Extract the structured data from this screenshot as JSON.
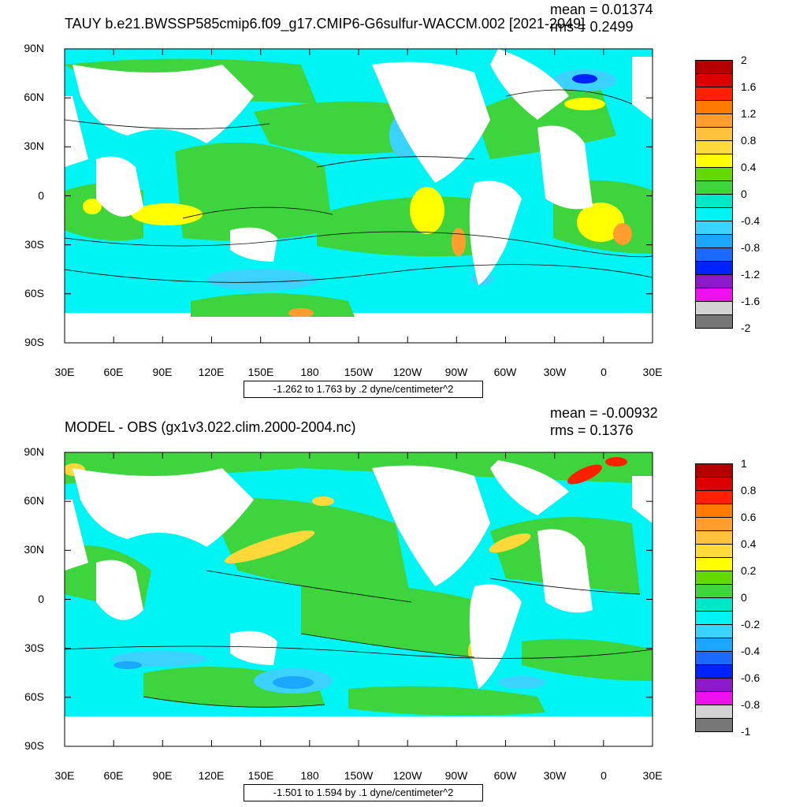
{
  "panels": [
    {
      "title": "TAUY b.e21.BWSSP585cmip6.f09_g17.CMIP6-G6sulfur-WACCM.002 [2021-2049]",
      "mean_label": "mean = 0.01374",
      "rms_label": "rms = 0.2499",
      "range_label": "-1.262 to 1.763 by .2 dyne/centimeter^2",
      "lat_ticks": [
        "90N",
        "60N",
        "30N",
        "0",
        "30S",
        "60S",
        "90S"
      ],
      "lon_ticks": [
        "30E",
        "60E",
        "90E",
        "120E",
        "150E",
        "180",
        "150W",
        "120W",
        "90W",
        "60W",
        "30W",
        "0",
        "30E"
      ],
      "colorbar_labels": [
        "2",
        "1.6",
        "1.2",
        "0.8",
        "0.4",
        "0",
        "-0.4",
        "-0.8",
        "-1.2",
        "-1.6",
        "-2"
      ],
      "colorbar_colors": [
        "#b40000",
        "#dc0000",
        "#ff2000",
        "#ff7a00",
        "#ff9d2e",
        "#ffc23a",
        "#ffd93a",
        "#ffff00",
        "#63d900",
        "#3ed43e",
        "#00e8c8",
        "#00f4f4",
        "#3cd2ff",
        "#1aa8ff",
        "#1a6aff",
        "#0022ff",
        "#8a1acb",
        "#ee10ee",
        "#d2d2d2",
        "#777777"
      ]
    },
    {
      "title": "MODEL - OBS (gx1v3.022.clim.2000-2004.nc)",
      "mean_label": "mean = -0.00932",
      "rms_label": "rms = 0.1376",
      "range_label": "-1.501 to 1.594 by .1 dyne/centimeter^2",
      "lat_ticks": [
        "90N",
        "60N",
        "30N",
        "0",
        "30S",
        "60S",
        "90S"
      ],
      "lon_ticks": [
        "30E",
        "60E",
        "90E",
        "120E",
        "150E",
        "180",
        "150W",
        "120W",
        "90W",
        "60W",
        "30W",
        "0",
        "30E"
      ],
      "colorbar_labels": [
        "1",
        "0.8",
        "0.6",
        "0.4",
        "0.2",
        "0",
        "-0.2",
        "-0.4",
        "-0.6",
        "-0.8",
        "-1"
      ],
      "colorbar_colors": [
        "#b40000",
        "#dc0000",
        "#ff2000",
        "#ff7a00",
        "#ff9d2e",
        "#ffc23a",
        "#ffd93a",
        "#ffff00",
        "#63d900",
        "#3ed43e",
        "#00e8c8",
        "#00f4f4",
        "#3cd2ff",
        "#1aa8ff",
        "#1a6aff",
        "#0022ff",
        "#8a1acb",
        "#ee10ee",
        "#d2d2d2",
        "#777777"
      ]
    }
  ],
  "colors": {
    "ocean_base": "#00f4f4",
    "ocean_green": "#3ed43e",
    "ocean_light_green": "#63d900",
    "land": "#ffffff"
  }
}
